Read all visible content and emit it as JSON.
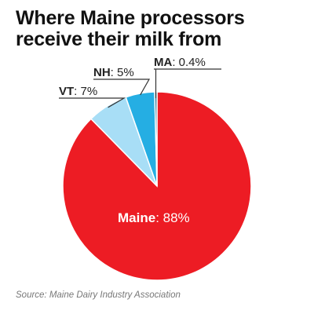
{
  "title_lines": [
    "Where Maine processors",
    "receive their milk from"
  ],
  "source": "Source: Maine Dairy Industry Association",
  "chart_data": {
    "type": "pie",
    "title": "Where Maine processors receive their milk from",
    "slices": [
      {
        "name": "Maine",
        "value": 88,
        "display": "88%",
        "color": "#ed1c24"
      },
      {
        "name": "VT",
        "value": 7,
        "display": "7%",
        "color": "#a8def6"
      },
      {
        "name": "NH",
        "value": 5,
        "display": "5%",
        "color": "#25aee3"
      },
      {
        "name": "MA",
        "value": 0.4,
        "display": "0.4%",
        "color": "#1b6e8f"
      }
    ]
  }
}
